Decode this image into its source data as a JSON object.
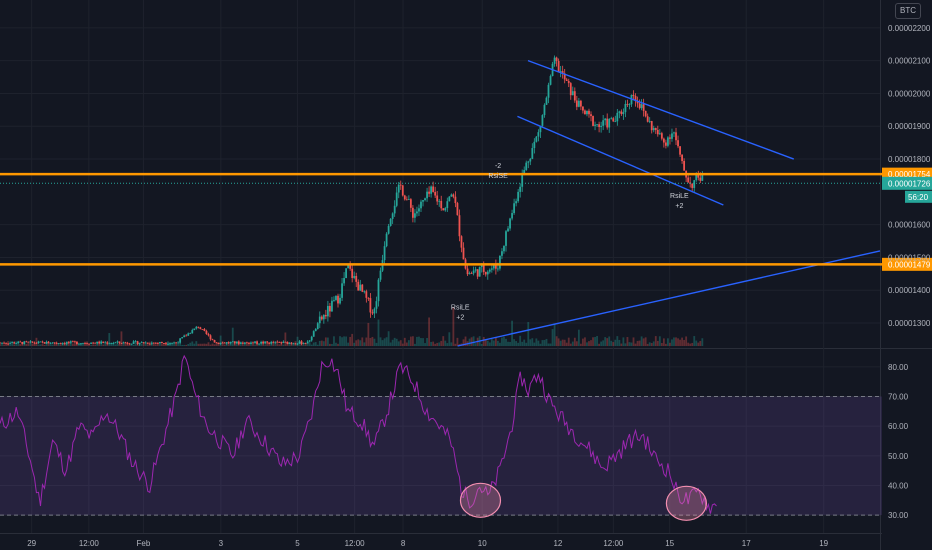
{
  "symbol_badge": "BTC",
  "colors": {
    "background": "#131722",
    "grid": "#1e222d",
    "axis_text": "#b2b5be",
    "up": "#26a69a",
    "down": "#ef5350",
    "level": "#ff9800",
    "trendline": "#2962ff",
    "rsi_line": "#9c27b0",
    "rsi_band": "#7e57c2",
    "highlight": "#f48fb1",
    "price_tag": "#26a69a"
  },
  "chart_data": [
    {
      "type": "candlestick",
      "y_axis_ticks": [
        "0.00002200",
        "0.00002100",
        "0.00002000",
        "0.00001900",
        "0.00001800",
        "0.00001600",
        "0.00001500",
        "0.00001400",
        "0.00001300"
      ],
      "y_range": [
        1.23e-05,
        2.23e-05
      ],
      "x_axis_labels": [
        "29",
        "12:00",
        "Feb",
        "3",
        "5",
        "12:00",
        "8",
        "10",
        "12",
        "12:00",
        "15",
        "17",
        "19"
      ],
      "horizontal_levels": [
        {
          "label": "0.00001754",
          "value": 1.754e-05
        },
        {
          "label": "0.00001479",
          "value": 1.479e-05
        }
      ],
      "current_price": {
        "label": "0.00001726",
        "value": 1.726e-05,
        "countdown": "56:20"
      },
      "signals": [
        {
          "text": "RsiLE",
          "sub": "+2",
          "t": 0.523,
          "price": 1.39e-05
        },
        {
          "text": "RsiSE",
          "sub": "-2",
          "t": 0.566,
          "price": 1.76e-05
        },
        {
          "text": "RsiLE",
          "sub": "+2",
          "t": 0.772,
          "price": 1.73e-05
        }
      ],
      "trendlines": [
        {
          "name": "channel-upper",
          "from": [
            0.6,
            2.1e-05
          ],
          "to": [
            0.902,
            1.8e-05
          ]
        },
        {
          "name": "channel-lower",
          "from": [
            0.588,
            1.93e-05
          ],
          "to": [
            0.822,
            1.66e-05
          ]
        },
        {
          "name": "rising-support",
          "from": [
            0.52,
            1.23e-05
          ],
          "to": [
            1.0,
            1.52e-05
          ]
        }
      ],
      "price_path": [
        [
          0.0,
          1.24e-05
        ],
        [
          0.2,
          1.24e-05
        ],
        [
          0.225,
          1.29e-05
        ],
        [
          0.245,
          1.24e-05
        ],
        [
          0.35,
          1.24e-05
        ],
        [
          0.362,
          1.3e-05
        ],
        [
          0.385,
          1.38e-05
        ],
        [
          0.395,
          1.47e-05
        ],
        [
          0.41,
          1.4e-05
        ],
        [
          0.425,
          1.33e-05
        ],
        [
          0.44,
          1.6e-05
        ],
        [
          0.455,
          1.72e-05
        ],
        [
          0.47,
          1.63e-05
        ],
        [
          0.49,
          1.7e-05
        ],
        [
          0.505,
          1.65e-05
        ],
        [
          0.515,
          1.7e-05
        ],
        [
          0.522,
          1.58e-05
        ],
        [
          0.53,
          1.45e-05
        ],
        [
          0.545,
          1.46e-05
        ],
        [
          0.565,
          1.47e-05
        ],
        [
          0.578,
          1.6e-05
        ],
        [
          0.59,
          1.72e-05
        ],
        [
          0.6,
          1.8e-05
        ],
        [
          0.612,
          1.88e-05
        ],
        [
          0.622,
          2e-05
        ],
        [
          0.63,
          2.1e-05
        ],
        [
          0.64,
          2.05e-05
        ],
        [
          0.66,
          1.95e-05
        ],
        [
          0.68,
          1.9e-05
        ],
        [
          0.7,
          1.92e-05
        ],
        [
          0.72,
          2e-05
        ],
        [
          0.74,
          1.9e-05
        ],
        [
          0.755,
          1.85e-05
        ],
        [
          0.765,
          1.89e-05
        ],
        [
          0.775,
          1.78e-05
        ],
        [
          0.785,
          1.72e-05
        ],
        [
          0.795,
          1.75e-05
        ],
        [
          0.8,
          1.73e-05
        ]
      ]
    },
    {
      "type": "line",
      "name": "RSI",
      "y_axis_ticks": [
        "80.00",
        "70.00",
        "60.00",
        "50.00",
        "40.00",
        "30.00"
      ],
      "y_range": [
        25,
        85
      ],
      "overbought": 70,
      "oversold": 30,
      "highlights": [
        {
          "name": "oversold-highlight-1",
          "t": 0.546,
          "value": 35
        },
        {
          "name": "oversold-highlight-2",
          "t": 0.78,
          "value": 34
        }
      ],
      "points": [
        [
          0.0,
          60
        ],
        [
          0.02,
          65
        ],
        [
          0.035,
          48
        ],
        [
          0.045,
          34
        ],
        [
          0.06,
          55
        ],
        [
          0.075,
          45
        ],
        [
          0.09,
          60
        ],
        [
          0.105,
          56
        ],
        [
          0.12,
          65
        ],
        [
          0.135,
          58
        ],
        [
          0.15,
          48
        ],
        [
          0.17,
          40
        ],
        [
          0.185,
          55
        ],
        [
          0.2,
          70
        ],
        [
          0.21,
          84
        ],
        [
          0.22,
          72
        ],
        [
          0.235,
          60
        ],
        [
          0.25,
          55
        ],
        [
          0.265,
          50
        ],
        [
          0.28,
          62
        ],
        [
          0.3,
          55
        ],
        [
          0.32,
          47
        ],
        [
          0.34,
          50
        ],
        [
          0.355,
          65
        ],
        [
          0.365,
          80
        ],
        [
          0.375,
          83
        ],
        [
          0.385,
          77
        ],
        [
          0.395,
          65
        ],
        [
          0.41,
          62
        ],
        [
          0.425,
          53
        ],
        [
          0.44,
          65
        ],
        [
          0.455,
          80
        ],
        [
          0.47,
          75
        ],
        [
          0.485,
          65
        ],
        [
          0.5,
          60
        ],
        [
          0.512,
          55
        ],
        [
          0.525,
          38
        ],
        [
          0.535,
          35
        ],
        [
          0.545,
          40
        ],
        [
          0.555,
          36
        ],
        [
          0.568,
          45
        ],
        [
          0.58,
          58
        ],
        [
          0.592,
          77
        ],
        [
          0.6,
          72
        ],
        [
          0.612,
          78
        ],
        [
          0.625,
          68
        ],
        [
          0.64,
          62
        ],
        [
          0.655,
          57
        ],
        [
          0.67,
          52
        ],
        [
          0.685,
          46
        ],
        [
          0.7,
          50
        ],
        [
          0.715,
          55
        ],
        [
          0.73,
          57
        ],
        [
          0.745,
          49
        ],
        [
          0.76,
          45
        ],
        [
          0.77,
          37
        ],
        [
          0.782,
          35
        ],
        [
          0.795,
          38
        ],
        [
          0.805,
          33
        ],
        [
          0.815,
          33
        ]
      ]
    }
  ]
}
